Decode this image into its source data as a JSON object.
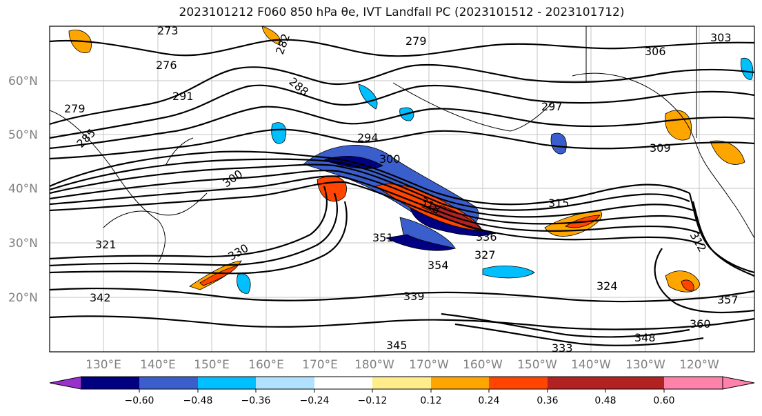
{
  "title": "2023101212 F060 850 hPa θe, IVT Landfall PC (2023101512 - 2023101712)",
  "lat_labels": [
    "60°N",
    "50°N",
    "40°N",
    "30°N",
    "20°N"
  ],
  "lon_labels": [
    "130°E",
    "140°E",
    "150°E",
    "160°E",
    "170°E",
    "180°W",
    "170°W",
    "160°W",
    "150°W",
    "140°W",
    "130°W",
    "120°W"
  ],
  "contour_labels": [
    "273",
    "276",
    "279",
    "282",
    "279",
    "285",
    "288",
    "291",
    "294",
    "297",
    "300",
    "300",
    "303",
    "306",
    "309",
    "312",
    "315",
    "318",
    "321",
    "324",
    "327",
    "330",
    "333",
    "336",
    "339",
    "342",
    "345",
    "348",
    "351",
    "354",
    "357",
    "360"
  ],
  "colorbar": {
    "ticks": [
      "−0.60",
      "−0.48",
      "−0.36",
      "−0.24",
      "−0.12",
      "0.12",
      "0.24",
      "0.36",
      "0.48",
      "0.60"
    ],
    "colors": [
      "#9932cc",
      "#000080",
      "#3a5fcd",
      "#00bfff",
      "#b0e2ff",
      "#ffffff",
      "#ffec8b",
      "#ffa500",
      "#ff4500",
      "#b22222",
      "#ff82ab"
    ]
  }
}
